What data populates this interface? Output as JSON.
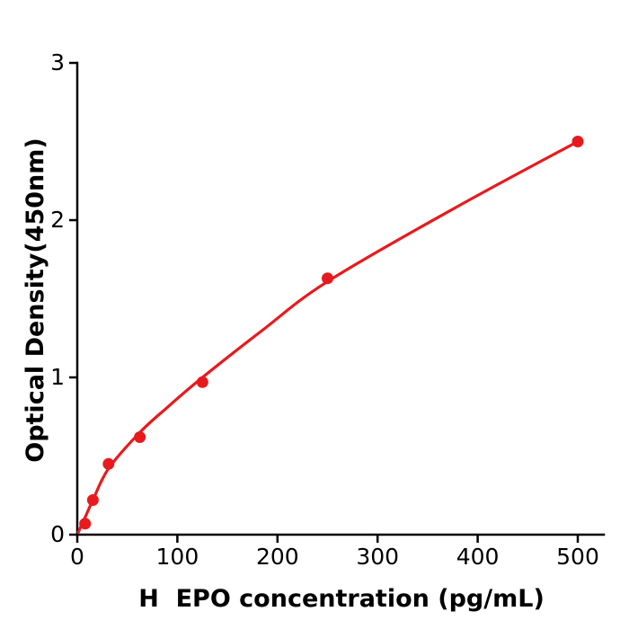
{
  "figure": {
    "background": "#ffffff",
    "accent_red": "#e81a1d",
    "axis_color": "#000000"
  },
  "chart_data": {
    "type": "scatter",
    "title": "",
    "xlabel": "H  EPO concentration (pg/mL)",
    "ylabel": "Optical Density(450nm)",
    "xlim": [
      0,
      526
    ],
    "ylim": [
      0,
      3
    ],
    "x_ticks": [
      0,
      100,
      200,
      300,
      400,
      500
    ],
    "x_tick_labels": [
      "0",
      "100",
      "200",
      "300",
      "400",
      "500"
    ],
    "y_ticks": [
      0,
      1,
      2,
      3
    ],
    "y_tick_labels": [
      "0",
      "1",
      "2",
      "3"
    ],
    "grid": false,
    "legend": "none",
    "series": [
      {
        "name": "standard-points",
        "type": "scatter",
        "color": "#e81a1d",
        "marker": "circle",
        "marker_radius_px": 6.5,
        "x": [
          7.8,
          15.6,
          31.25,
          62.5,
          125,
          250,
          500
        ],
        "y": [
          0.07,
          0.22,
          0.45,
          0.62,
          0.97,
          1.63,
          2.5
        ]
      },
      {
        "name": "fit-curve",
        "type": "line",
        "color": "#e81a1d",
        "x": [
          1,
          7.8,
          15.6,
          31.25,
          62.5,
          90,
          125,
          185,
          250,
          375,
          500
        ],
        "y": [
          0.015,
          0.11,
          0.22,
          0.42,
          0.65,
          0.81,
          1.0,
          1.3,
          1.61,
          2.07,
          2.5
        ]
      }
    ]
  }
}
